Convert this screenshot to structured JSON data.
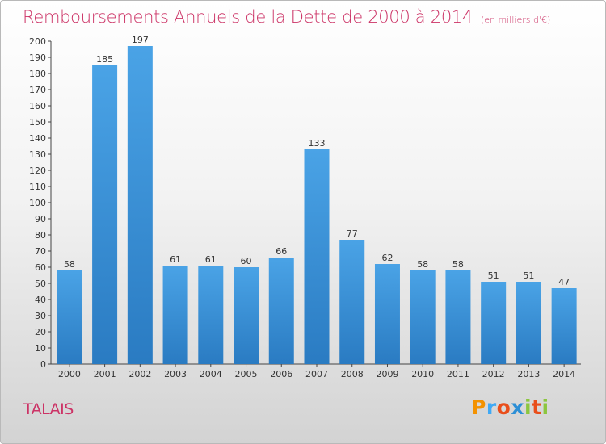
{
  "chart_data": {
    "type": "bar",
    "title": "Remboursements Annuels de la Dette de 2000 à 2014",
    "unit": "(en milliers d'€)",
    "categories": [
      "2000",
      "2001",
      "2002",
      "2003",
      "2004",
      "2005",
      "2006",
      "2007",
      "2008",
      "2009",
      "2010",
      "2011",
      "2012",
      "2013",
      "2014"
    ],
    "values": [
      58,
      185,
      197,
      61,
      61,
      60,
      66,
      133,
      77,
      62,
      58,
      58,
      51,
      51,
      47
    ],
    "ylim": [
      0,
      200
    ],
    "ytick_step": 10,
    "grid": false,
    "bar_color": "#4aa3e6",
    "bar_color_dark": "#2a7bc2"
  },
  "place": "TALAIS",
  "logo": {
    "letters": [
      "P",
      "r",
      "o",
      "x",
      "i",
      "t",
      "i"
    ],
    "colors": [
      "#f39200",
      "#3fa9f5",
      "#e94e1b",
      "#2c8fd6",
      "#8cc63f",
      "#e94e1b",
      "#8cc63f"
    ]
  }
}
